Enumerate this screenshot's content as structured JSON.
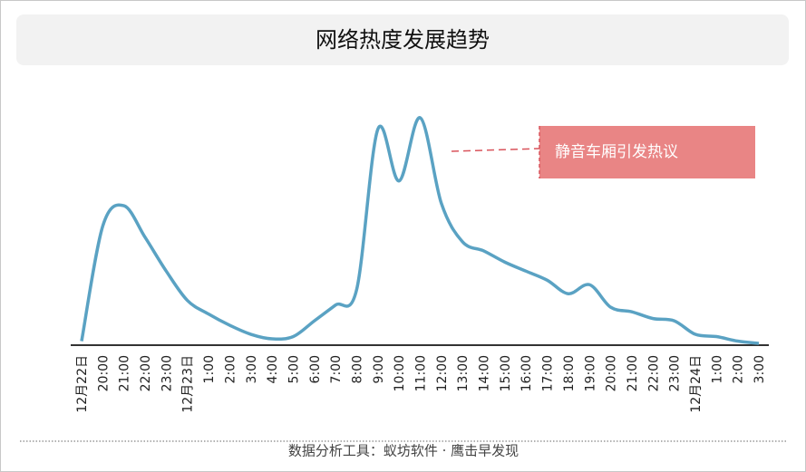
{
  "chart_data": {
    "type": "line",
    "title": "网络热度发展趋势",
    "categories": [
      "12月22日",
      "20:00",
      "21:00",
      "22:00",
      "23:00",
      "12月23日",
      "1:00",
      "2:00",
      "3:00",
      "4:00",
      "5:00",
      "6:00",
      "7:00",
      "8:00",
      "9:00",
      "10:00",
      "11:00",
      "12:00",
      "13:00",
      "14:00",
      "15:00",
      "16:00",
      "17:00",
      "18:00",
      "19:00",
      "20:00",
      "21:00",
      "22:00",
      "23:00",
      "12月24日",
      "1:00",
      "2:00",
      "3:00"
    ],
    "series": [
      {
        "name": "网络热度",
        "color": "#5aa2c3",
        "values": [
          1,
          52,
          61,
          47,
          32,
          19,
          13,
          8,
          4,
          2,
          3,
          10,
          17,
          24,
          95,
          72,
          100,
          62,
          45,
          41,
          36,
          32,
          28,
          22,
          26,
          16,
          14,
          11,
          10,
          4,
          3,
          1,
          0
        ]
      }
    ],
    "ylim": [
      0,
      100
    ],
    "annotation": "静音车厢引发热议",
    "footer": "数据分析工具：蚁坊软件 · 鹰击早发现"
  }
}
